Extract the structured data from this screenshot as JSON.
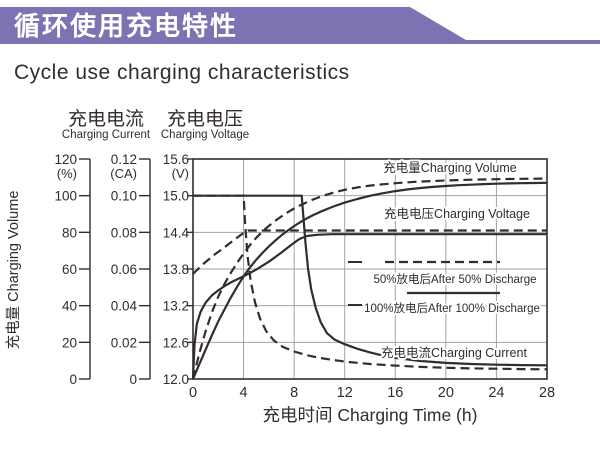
{
  "banner": {
    "title": "循环使用充电特性",
    "color": "#7d73b2"
  },
  "page_title": "Cycle use charging characteristics",
  "colors": {
    "banner": "#7d73b2",
    "curve": "#332d2a",
    "grid": "#a3a3a3",
    "text": "#332d2a"
  },
  "chart_data": {
    "type": "line",
    "title": "Cycle use charging characteristics",
    "x_axis": {
      "label": "充电时间 Charging Time (h)",
      "ticks": [
        "0",
        "4",
        "8",
        "12",
        "16",
        "20",
        "24",
        "28"
      ],
      "tick_values": [
        0,
        4,
        8,
        12,
        16,
        20,
        24,
        28
      ],
      "range": [
        0,
        28
      ]
    },
    "y_axes": [
      {
        "id": "volume",
        "header_zh": "",
        "header_en": "",
        "side_label": "充电量 Charging Volume",
        "unit": "(%)",
        "ticks": [
          "120",
          "100",
          "80",
          "60",
          "40",
          "20",
          "0"
        ],
        "range": [
          0,
          120
        ]
      },
      {
        "id": "current",
        "header_zh": "充电电流",
        "header_en": "Charging Current",
        "unit": "(CA)",
        "ticks": [
          "0.12",
          "0.10",
          "0.08",
          "0.06",
          "0.04",
          "0.02",
          "0"
        ],
        "range": [
          0,
          0.12
        ]
      },
      {
        "id": "voltage",
        "header_zh": "充电电压",
        "header_en": "Charging Voltage",
        "unit": "(V)",
        "ticks": [
          "15.6",
          "15.0",
          "14.4",
          "13.8",
          "13.2",
          "12.6",
          "12.0"
        ],
        "range": [
          12.0,
          15.6
        ]
      }
    ],
    "grid": {
      "vertical_at_hours": [
        4,
        8,
        12,
        16,
        20,
        24
      ],
      "horizontal_at_volts": [
        15.0,
        14.4,
        13.8,
        13.2,
        12.6
      ]
    },
    "line_labels": {
      "volume": "充电量Charging Volume",
      "voltage": "充电电压Charging Voltage",
      "current": "充电电流Charging Current"
    },
    "legend": [
      {
        "style": "dashed",
        "label": "50%放电后After 50% Discharge"
      },
      {
        "style": "solid",
        "label": "100%放电后After 100% Discharge"
      }
    ],
    "series": [
      {
        "name": "charging-current-after-100-discharge",
        "quantity": "current",
        "axis": "current",
        "style": "solid",
        "unit": "CA",
        "points": [
          [
            0,
            0.1
          ],
          [
            8.6,
            0.1
          ],
          [
            8.75,
            0.087
          ],
          [
            8.9,
            0.074
          ],
          [
            9.1,
            0.06
          ],
          [
            9.35,
            0.049
          ],
          [
            9.7,
            0.039
          ],
          [
            10.1,
            0.031
          ],
          [
            10.6,
            0.025
          ],
          [
            11.2,
            0.0215
          ],
          [
            12,
            0.019
          ],
          [
            13,
            0.0165
          ],
          [
            14,
            0.0145
          ],
          [
            15,
            0.0128
          ],
          [
            16,
            0.0115
          ],
          [
            18,
            0.0098
          ],
          [
            20,
            0.0088
          ],
          [
            22,
            0.0082
          ],
          [
            24,
            0.0078
          ],
          [
            26,
            0.0076
          ],
          [
            28,
            0.0075
          ]
        ]
      },
      {
        "name": "charging-current-after-50-discharge",
        "quantity": "current",
        "axis": "current",
        "style": "dashed",
        "unit": "CA",
        "points": [
          [
            0,
            0.1
          ],
          [
            4,
            0.1
          ],
          [
            4.12,
            0.085
          ],
          [
            4.3,
            0.068
          ],
          [
            4.55,
            0.054
          ],
          [
            4.9,
            0.042
          ],
          [
            5.3,
            0.033
          ],
          [
            5.8,
            0.026
          ],
          [
            6.4,
            0.021
          ],
          [
            7.1,
            0.0175
          ],
          [
            8,
            0.015
          ],
          [
            9,
            0.013
          ],
          [
            10,
            0.0115
          ],
          [
            12,
            0.0095
          ],
          [
            14,
            0.0082
          ],
          [
            16,
            0.0073
          ],
          [
            18,
            0.0066
          ],
          [
            20,
            0.0061
          ],
          [
            22,
            0.0058
          ],
          [
            24,
            0.0056
          ],
          [
            26,
            0.0054
          ],
          [
            28,
            0.0053
          ]
        ]
      },
      {
        "name": "charging-voltage-after-100-discharge",
        "quantity": "voltage",
        "axis": "voltage",
        "style": "solid",
        "unit": "V",
        "points": [
          [
            0,
            12.0
          ],
          [
            0.12,
            12.55
          ],
          [
            0.3,
            12.9
          ],
          [
            0.6,
            13.1
          ],
          [
            1,
            13.25
          ],
          [
            1.5,
            13.37
          ],
          [
            2,
            13.45
          ],
          [
            2.5,
            13.52
          ],
          [
            3,
            13.58
          ],
          [
            4,
            13.68
          ],
          [
            5,
            13.79
          ],
          [
            6,
            13.92
          ],
          [
            7,
            14.07
          ],
          [
            7.8,
            14.2
          ],
          [
            8.4,
            14.29
          ],
          [
            9,
            14.34
          ],
          [
            9.8,
            14.36
          ],
          [
            11,
            14.37
          ],
          [
            28,
            14.37
          ]
        ]
      },
      {
        "name": "charging-voltage-after-50-discharge",
        "quantity": "voltage",
        "axis": "voltage",
        "style": "dashed",
        "unit": "V",
        "points": [
          [
            0,
            13.72
          ],
          [
            0.8,
            13.88
          ],
          [
            1.6,
            14.02
          ],
          [
            2.4,
            14.14
          ],
          [
            3.2,
            14.27
          ],
          [
            4,
            14.39
          ],
          [
            4.35,
            14.43
          ],
          [
            28,
            14.43
          ]
        ]
      },
      {
        "name": "charging-volume-after-100-discharge",
        "quantity": "volume",
        "axis": "volume",
        "style": "solid",
        "unit": "%",
        "points": [
          [
            0,
            0
          ],
          [
            0.5,
            8
          ],
          [
            1,
            16
          ],
          [
            1.5,
            24
          ],
          [
            2,
            31.5
          ],
          [
            2.5,
            38
          ],
          [
            3,
            44.5
          ],
          [
            3.5,
            50.5
          ],
          [
            4,
            56
          ],
          [
            4.5,
            60.8
          ],
          [
            5,
            65
          ],
          [
            5.5,
            68.8
          ],
          [
            6,
            72.3
          ],
          [
            6.5,
            75.5
          ],
          [
            7,
            78.4
          ],
          [
            7.5,
            81
          ],
          [
            8,
            83.4
          ],
          [
            8.6,
            86
          ],
          [
            9,
            87.6
          ],
          [
            9.5,
            89.4
          ],
          [
            10,
            91
          ],
          [
            11,
            93.8
          ],
          [
            12,
            96.2
          ],
          [
            13,
            98.2
          ],
          [
            14,
            99.9
          ],
          [
            15,
            101.3
          ],
          [
            16,
            102.5
          ],
          [
            17,
            103.4
          ],
          [
            18,
            104.2
          ],
          [
            19,
            104.8
          ],
          [
            20,
            105.3
          ],
          [
            21,
            105.7
          ],
          [
            22,
            106
          ],
          [
            23,
            106.3
          ],
          [
            24,
            106.5
          ],
          [
            25,
            106.7
          ],
          [
            26,
            106.8
          ],
          [
            27,
            106.9
          ],
          [
            28,
            107
          ]
        ]
      },
      {
        "name": "charging-volume-after-50-discharge",
        "quantity": "volume",
        "axis": "volume",
        "style": "dashed",
        "unit": "%",
        "points": [
          [
            0,
            0
          ],
          [
            0.5,
            14
          ],
          [
            1,
            26
          ],
          [
            1.5,
            36.5
          ],
          [
            2,
            45
          ],
          [
            2.5,
            52
          ],
          [
            3,
            58
          ],
          [
            3.5,
            63.5
          ],
          [
            4,
            68.5
          ],
          [
            4.5,
            73
          ],
          [
            5,
            77
          ],
          [
            5.5,
            80.5
          ],
          [
            6,
            83.5
          ],
          [
            6.5,
            86.3
          ],
          [
            7,
            88.7
          ],
          [
            7.5,
            91
          ],
          [
            8,
            93
          ],
          [
            8.5,
            94.8
          ],
          [
            9,
            96.4
          ],
          [
            9.5,
            97.9
          ],
          [
            10,
            99.2
          ],
          [
            10.5,
            100.4
          ],
          [
            11,
            101.4
          ],
          [
            11.5,
            102.4
          ],
          [
            12,
            103.2
          ],
          [
            13,
            104.5
          ],
          [
            14,
            105.5
          ],
          [
            15,
            106.2
          ],
          [
            16,
            106.8
          ],
          [
            17,
            107.3
          ],
          [
            18,
            107.7
          ],
          [
            19,
            108
          ],
          [
            20,
            108.3
          ],
          [
            22,
            108.7
          ],
          [
            24,
            109
          ],
          [
            26,
            109.2
          ],
          [
            28,
            109.3
          ]
        ]
      }
    ]
  }
}
